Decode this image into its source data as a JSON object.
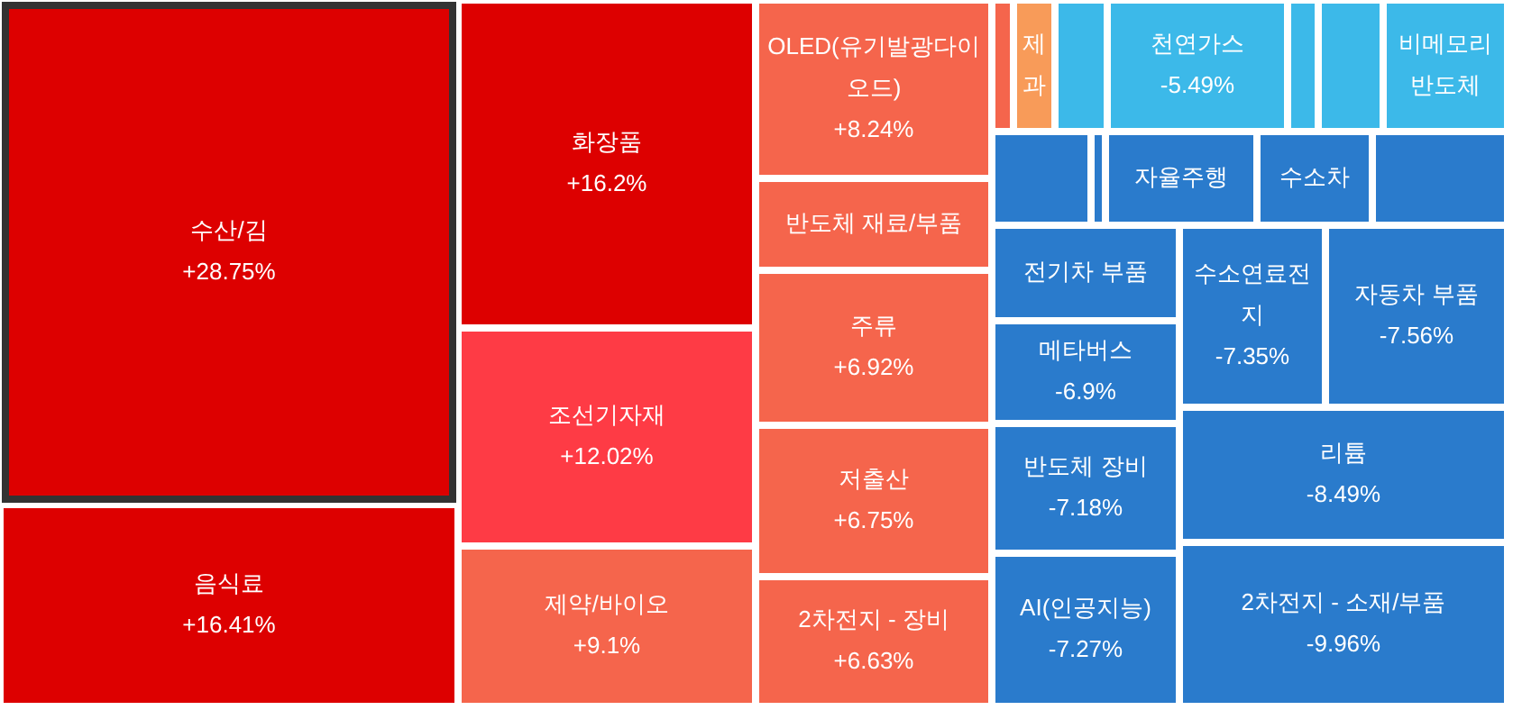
{
  "chart_data": {
    "type": "other",
    "categories": [
      "수산/김",
      "음식료",
      "화장품",
      "조선기자재",
      "제약/바이오",
      "OLED(유기발광다이오드)",
      "반도체 재료/부품",
      "주류",
      "저출산",
      "2차전지 - 장비",
      null,
      "제과",
      null,
      "천연가스",
      null,
      null,
      "비메모리 반도체",
      null,
      null,
      "자율주행",
      "수소차",
      null,
      "전기차 부품",
      "메타버스",
      "반도체 장비",
      "AI(인공지능)",
      "수소연료전지",
      "자동차 부품",
      "리튬",
      "2차전지 - 소재/부품"
    ],
    "values": [
      28.75,
      16.41,
      16.2,
      12.02,
      9.1,
      8.24,
      null,
      6.92,
      6.75,
      6.63,
      null,
      null,
      null,
      -5.49,
      null,
      null,
      null,
      null,
      null,
      null,
      null,
      null,
      null,
      -6.9,
      -7.18,
      -7.27,
      -7.35,
      -7.56,
      -8.49,
      -9.96
    ],
    "value_labels": [
      "+28.75%",
      "+16.41%",
      "+16.2%",
      "+12.02%",
      "+9.1%",
      "+8.24%",
      null,
      "+6.92%",
      "+6.75%",
      "+6.63%",
      null,
      null,
      null,
      "-5.49%",
      null,
      null,
      null,
      null,
      null,
      null,
      null,
      null,
      null,
      "-6.9%",
      "-7.18%",
      "-7.27%",
      "-7.35%",
      "-7.56%",
      "-8.49%",
      "-9.96%"
    ],
    "colors": [
      "#dd0000",
      "#dd0000",
      "#dd0000",
      "#fe3b45",
      "#f5654c",
      "#f5654c",
      "#f5654c",
      "#f5654c",
      "#f5654c",
      "#f5654c",
      "#f5654c",
      "#f89b59",
      "#3cb9e9",
      "#3cb9e9",
      "#3cb9e9",
      "#3cb9e9",
      "#3cb9e9",
      "#2a7bcc",
      "#2a7bcc",
      "#2a7bcc",
      "#2a7bcc",
      "#2a7bcc",
      "#2a7bcc",
      "#2a7bcc",
      "#2a7bcc",
      "#2a7bcc",
      "#2a7bcc",
      "#2a7bcc",
      "#2a7bcc",
      "#2a7bcc"
    ]
  }
}
